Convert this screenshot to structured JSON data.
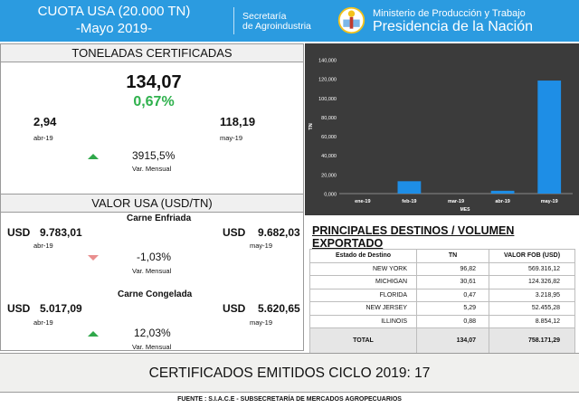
{
  "header": {
    "title_line1": "CUOTA USA (20.000 TN)",
    "title_line2": "-Mayo 2019-",
    "secretaria_line1": "Secretaría",
    "secretaria_line2": "de Agroindustria",
    "ministerio": "Ministerio de Producción y Trabajo",
    "presidencia": "Presidencia de la Nación"
  },
  "toneladas": {
    "heading": "TONELADAS CERTIFICADAS",
    "total": "134,07",
    "pct": "0,67%",
    "prev_value": "2,94",
    "prev_label": "abr-19",
    "curr_value": "118,19",
    "curr_label": "may-19",
    "variation": "3915,5%",
    "variation_label": "Var. Mensual"
  },
  "valor": {
    "heading": "VALOR USA  (USD/TN)",
    "enfriada": {
      "title": "Carne Enfriada",
      "currency": "USD",
      "prev_value": "9.783,01",
      "prev_label": "abr-19",
      "curr_value": "9.682,03",
      "curr_label": "may-19",
      "variation": "-1,03%",
      "variation_label": "Var. Mensual"
    },
    "congelada": {
      "title": "Carne Congelada",
      "currency": "USD",
      "prev_value": "5.017,09",
      "prev_label": "abr-19",
      "curr_value": "5.620,65",
      "curr_label": "may-19",
      "variation": "12,03%",
      "variation_label": "Var. Mensual"
    }
  },
  "chart_data": {
    "type": "bar",
    "categories": [
      "ene-19",
      "feb-19",
      "mar-19",
      "abr-19",
      "may-19"
    ],
    "values": [
      0,
      12940,
      0,
      2940,
      118190
    ],
    "ylim": [
      0,
      140000
    ],
    "yticks": [
      "0,000",
      "20,000",
      "40,000",
      "60,000",
      "80,000",
      "100,000",
      "120,000",
      "140,000"
    ],
    "xlabel": "MES",
    "ylabel": "TN",
    "grid": false,
    "bar_color": "#1e8ee6"
  },
  "destinos": {
    "heading": "PRINCIPALES DESTINOS /  VOLUMEN EXPORTADO",
    "columns": [
      "Estado de Destino",
      "TN",
      "VALOR FOB (USD)"
    ],
    "rows": [
      [
        "NEW YORK",
        "96,82",
        "569.316,12"
      ],
      [
        "MICHIGAN",
        "30,61",
        "124.326,82"
      ],
      [
        "FLORIDA",
        "0,47",
        "3.218,95"
      ],
      [
        "NEW JERSEY",
        "5,29",
        "52.455,28"
      ],
      [
        "ILLINOIS",
        "0,88",
        "8.854,12"
      ]
    ],
    "total": [
      "TOTAL",
      "134,07",
      "758.171,29"
    ]
  },
  "footer": {
    "certificados": "CERTIFICADOS EMITIDOS CICLO 2019: 17",
    "fuente": "FUENTE : S.I.A.C.E - SUBSECRETARÍA DE MERCADOS AGROPECUARIOS"
  }
}
